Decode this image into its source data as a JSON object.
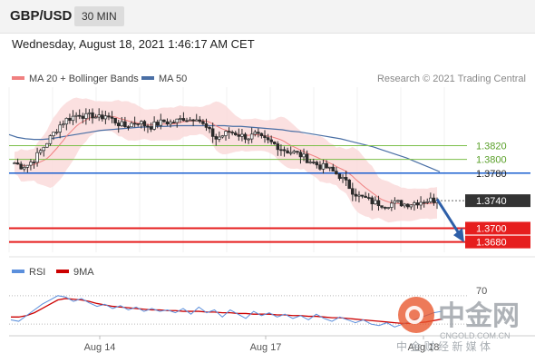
{
  "header": {
    "symbol": "GBP/USD",
    "interval": "30 MIN"
  },
  "timestamp": "Wednesday, August 18, 2021 1:46:17 AM CET",
  "legend": {
    "ma20_bb": "MA 20 + Bollinger Bands",
    "ma50": "MA 50"
  },
  "research": "Research © 2021 Trading Central",
  "watermark": {
    "main": "中金网",
    "url": "CNGOLD.COM.CN",
    "sub": "中 金 财 经 新 媒 体"
  },
  "colors": {
    "ma20": "#f08080",
    "bollinger": "#fadada",
    "ma50": "#4a6fa5",
    "candle": "#2b2b2b",
    "resistance": "#7cbf4a",
    "pivot": "#1a5fd0",
    "support": "#e61e1e",
    "current": "#333333",
    "arrow": "#2e5fa8",
    "rsi": "#5b8fdc",
    "rsi_ma": "#cc0000"
  },
  "chart_data": [
    {
      "type": "candlestick",
      "x_ticks": [
        "Aug 14",
        "Aug 17",
        "Aug 18"
      ],
      "y_range": [
        1.3665,
        1.3905
      ],
      "levels": [
        {
          "value": 1.382,
          "label": "1.3820",
          "role": "resistance"
        },
        {
          "value": 1.38,
          "label": "1.3800",
          "role": "resistance"
        },
        {
          "value": 1.378,
          "label": "1.3780",
          "role": "pivot"
        },
        {
          "value": 1.374,
          "label": "1.3740",
          "role": "current"
        },
        {
          "value": 1.37,
          "label": "1.3700",
          "role": "support"
        },
        {
          "value": 1.368,
          "label": "1.3680",
          "role": "support"
        }
      ],
      "close_path": [
        1.3795,
        1.379,
        1.3792,
        1.38,
        1.3812,
        1.3825,
        1.3838,
        1.385,
        1.3858,
        1.3862,
        1.3866,
        1.3862,
        1.3864,
        1.386,
        1.3864,
        1.3858,
        1.3852,
        1.3848,
        1.3852,
        1.3855,
        1.385,
        1.3848,
        1.3852,
        1.3855,
        1.3853,
        1.3856,
        1.386,
        1.3858,
        1.3862,
        1.385,
        1.384,
        1.383,
        1.3835,
        1.384,
        1.3838,
        1.3834,
        1.3832,
        1.3836,
        1.383,
        1.3826,
        1.3822,
        1.3816,
        1.3812,
        1.381,
        1.3806,
        1.38,
        1.3795,
        1.379,
        1.3788,
        1.3782,
        1.3776,
        1.3766,
        1.3754,
        1.3746,
        1.3743,
        1.3738,
        1.3736,
        1.3734,
        1.3736,
        1.3737,
        1.3735,
        1.3736,
        1.3738,
        1.374,
        1.3741,
        1.374
      ],
      "ma50_path": [
        1.3836,
        1.3832,
        1.383,
        1.3829,
        1.3829,
        1.383,
        1.3832,
        1.3834,
        1.3836,
        1.3838,
        1.384,
        1.3842,
        1.3843,
        1.3844,
        1.3845,
        1.3846,
        1.3847,
        1.3847,
        1.3848,
        1.3848,
        1.3849,
        1.3849,
        1.3849,
        1.3849,
        1.3849,
        1.3849,
        1.3849,
        1.3848,
        1.3848,
        1.3847,
        1.3846,
        1.3845,
        1.3844,
        1.3843,
        1.3841,
        1.384,
        1.3838,
        1.3836,
        1.3834,
        1.3832,
        1.383,
        1.3827,
        1.3824,
        1.3821,
        1.3818,
        1.3814,
        1.381,
        1.3806,
        1.3802,
        1.3797,
        1.3792,
        1.3787,
        1.3782
      ],
      "arrow": {
        "from": 1.3742,
        "to": 1.3682
      }
    },
    {
      "type": "line",
      "legend": [
        "RSI",
        "9MA"
      ],
      "y_tick": 70,
      "y_range": [
        20,
        80
      ],
      "series": [
        {
          "name": "RSI",
          "values": [
            36,
            34,
            42,
            50,
            58,
            64,
            70,
            68,
            62,
            66,
            60,
            55,
            58,
            52,
            56,
            50,
            54,
            48,
            52,
            48,
            50,
            46,
            52,
            44,
            54,
            46,
            50,
            40,
            50,
            44,
            38,
            48,
            42,
            46,
            40,
            44,
            38,
            42,
            36,
            44,
            38,
            34,
            40,
            36,
            32,
            36,
            30,
            28,
            32,
            26,
            30,
            34,
            38,
            42,
            46,
            48
          ]
        },
        {
          "name": "9MA",
          "values": [
            40,
            40,
            42,
            46,
            52,
            58,
            64,
            66,
            65,
            64,
            62,
            59,
            57,
            55,
            54,
            53,
            52,
            51,
            50,
            50,
            49,
            49,
            48,
            48,
            48,
            47,
            47,
            46,
            46,
            45,
            45,
            44,
            44,
            44,
            43,
            43,
            42,
            42,
            41,
            41,
            40,
            39,
            39,
            38,
            37,
            36,
            35,
            34,
            33,
            32,
            31,
            31,
            32,
            33,
            35,
            37
          ]
        }
      ]
    }
  ]
}
